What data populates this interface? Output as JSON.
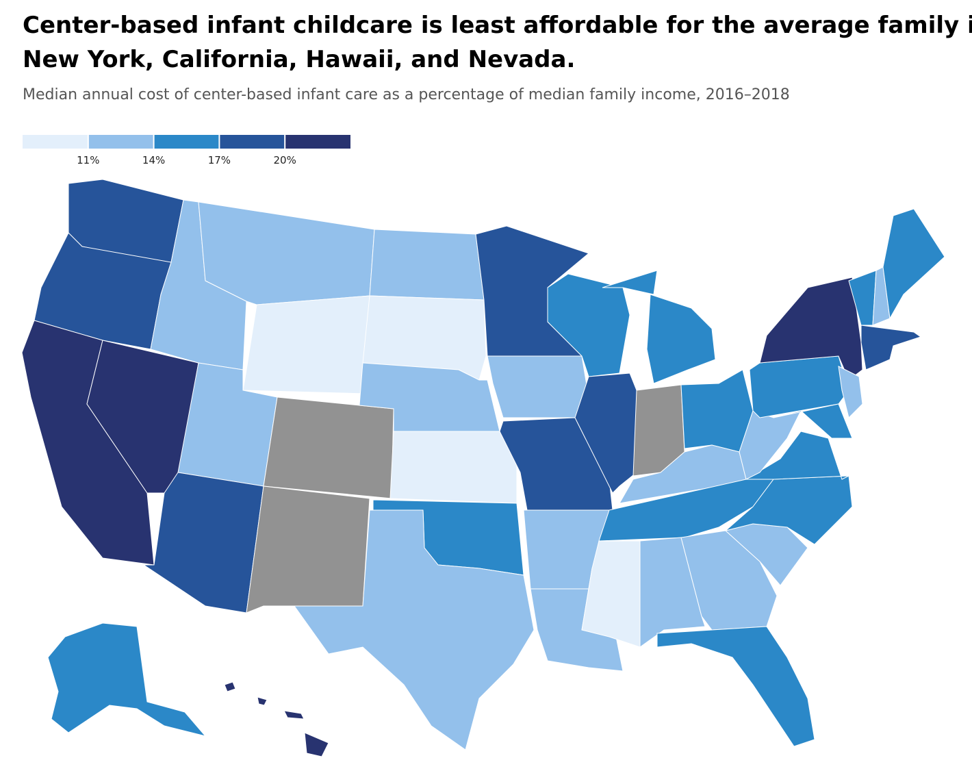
{
  "title_lines": [
    "Center-based infant childcare is least affordable for the average family in",
    "New York, California, Hawaii, and Nevada."
  ],
  "subtitle": "Median annual cost of center-based infant care as a percentage of median family income, 2016–2018",
  "legend": {
    "colors": [
      "#e3effb",
      "#93c0eb",
      "#2b88c8",
      "#26549a",
      "#283370"
    ],
    "ticks": [
      {
        "value": 11,
        "label": "11%"
      },
      {
        "value": 14,
        "label": "14%"
      },
      {
        "value": 17,
        "label": "17%"
      },
      {
        "value": 20,
        "label": "20%"
      }
    ]
  },
  "regions": [
    "#26549a",
    "#26549a",
    "#283370",
    "#283370",
    "#93c0eb",
    "#93c0eb",
    "#e3effb",
    "#93c0eb",
    "#929292",
    "#26549a",
    "#929292",
    "#93c0eb",
    "#e3effb",
    "#93c0eb",
    "#e3effb",
    "#2b88c8",
    "#93c0eb",
    "#26549a",
    "#93c0eb",
    "#26549a",
    "#93c0eb",
    "#93c0eb",
    "#2b88c8",
    "#26549a",
    "#2b88c8",
    "#2b88c8",
    "#929292",
    "#2b88c8",
    "#93c0eb",
    "#2b88c8",
    "#e3effb",
    "#93c0eb",
    "#93c0eb",
    "#2b88c8",
    "#93c0eb",
    "#2b88c8",
    "#2b88c8",
    "#93c0eb",
    "#2b88c8",
    "#283370",
    "#2b88c8",
    "#93c0eb",
    "#26549a",
    "#2b88c8",
    "#93c0eb",
    "#2b88c8",
    "#2b88c8",
    "#283370",
    "#283370",
    "#283370",
    "#283370"
  ]
}
